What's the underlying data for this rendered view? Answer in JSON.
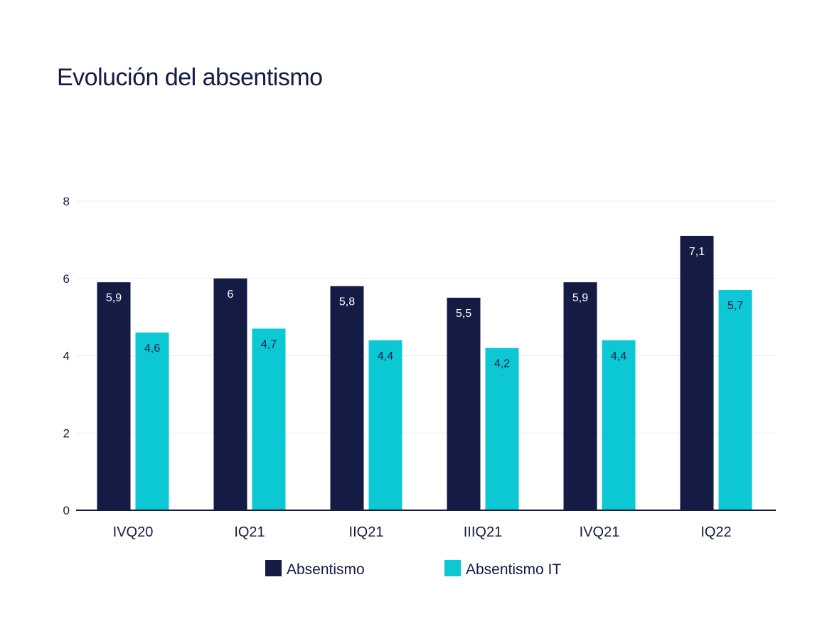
{
  "chart_data": {
    "type": "bar",
    "title": "Evolución del absentismo",
    "categories": [
      "IVQ20",
      "IQ21",
      "IIQ21",
      "IIIQ21",
      "IVQ21",
      "IQ22"
    ],
    "series": [
      {
        "name": "Absentismo",
        "values": [
          5.9,
          6,
          5.8,
          5.5,
          5.9,
          7.1
        ],
        "labels": [
          "5,9",
          "6",
          "5,8",
          "5,5",
          "5,9",
          "7,1"
        ],
        "color": "#141b45"
      },
      {
        "name": "Absentismo IT",
        "values": [
          4.6,
          4.7,
          4.4,
          4.2,
          4.4,
          5.7
        ],
        "labels": [
          "4,6",
          "4,7",
          "4,4",
          "4,2",
          "4,4",
          "5,7"
        ],
        "color": "#0bc8d4"
      }
    ],
    "ylim": [
      0,
      8
    ],
    "yticks": [
      0,
      2,
      4,
      6,
      8
    ],
    "grid": true,
    "legend": "bottom"
  }
}
